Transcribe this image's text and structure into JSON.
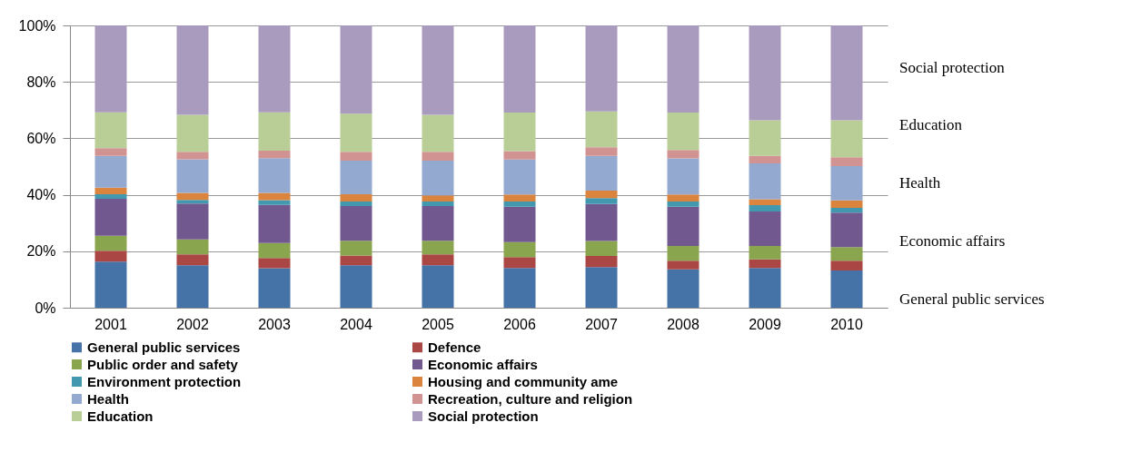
{
  "chart_data": {
    "type": "bar",
    "stacked": true,
    "categories": [
      "2001",
      "2002",
      "2003",
      "2004",
      "2005",
      "2006",
      "2007",
      "2008",
      "2009",
      "2010"
    ],
    "ylim": [
      0,
      100
    ],
    "yticks": [
      {
        "value": 0,
        "label": "0%"
      },
      {
        "value": 20,
        "label": "20%"
      },
      {
        "value": 40,
        "label": "40%"
      },
      {
        "value": 60,
        "label": "60%"
      },
      {
        "value": 80,
        "label": "80%"
      },
      {
        "value": 100,
        "label": "100%"
      }
    ],
    "grid": "y",
    "legend": "bottom",
    "series": [
      {
        "name": "General public services",
        "color": "#4572a7",
        "values": [
          16.3,
          15.0,
          14.0,
          15.0,
          15.0,
          14.1,
          14.4,
          13.6,
          14.1,
          13.2
        ]
      },
      {
        "name": "Defence",
        "color": "#aa4643",
        "values": [
          3.9,
          3.9,
          3.6,
          3.5,
          3.9,
          3.8,
          3.9,
          3.0,
          3.0,
          3.4
        ]
      },
      {
        "name": "Public order and safety",
        "color": "#89a54e",
        "values": [
          5.3,
          5.3,
          5.3,
          5.2,
          4.8,
          5.3,
          5.3,
          5.3,
          4.8,
          4.9
        ]
      },
      {
        "name": "Economic affairs",
        "color": "#71588f",
        "values": [
          13.1,
          12.7,
          13.5,
          12.3,
          12.3,
          12.6,
          13.1,
          13.9,
          12.2,
          12.2
        ]
      },
      {
        "name": "Environment protection",
        "color": "#4198af",
        "values": [
          1.6,
          1.3,
          1.7,
          1.6,
          1.6,
          1.8,
          2.1,
          1.8,
          2.2,
          1.7
        ]
      },
      {
        "name": "Housing and community ame",
        "color": "#db843d",
        "values": [
          2.3,
          2.5,
          2.6,
          2.6,
          2.2,
          2.5,
          2.7,
          2.5,
          2.1,
          2.6
        ]
      },
      {
        "name": "Health",
        "color": "#93a9cf",
        "values": [
          11.3,
          11.9,
          12.3,
          11.9,
          12.3,
          12.4,
          12.3,
          12.8,
          12.7,
          12.2
        ]
      },
      {
        "name": "Recreation, culture and religion",
        "color": "#d19392",
        "values": [
          2.7,
          2.6,
          2.6,
          3.1,
          3.1,
          3.0,
          3.0,
          3.0,
          2.7,
          3.1
        ]
      },
      {
        "name": "Education",
        "color": "#b9cd96",
        "values": [
          12.7,
          13.1,
          13.6,
          13.5,
          13.1,
          13.6,
          12.7,
          13.2,
          12.6,
          13.1
        ]
      },
      {
        "name": "Social protection",
        "color": "#a99bbd",
        "values": [
          30.8,
          31.7,
          30.8,
          31.3,
          31.7,
          30.9,
          30.5,
          30.9,
          33.6,
          33.6
        ]
      }
    ],
    "annotations": [
      "Social protection",
      "Education",
      "Health",
      "Economic affairs",
      "General public services"
    ]
  }
}
